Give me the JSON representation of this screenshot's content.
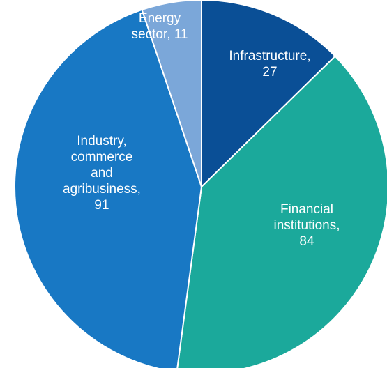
{
  "chart_data": {
    "type": "pie",
    "start": "top",
    "direction": "clockwise",
    "slices": [
      {
        "category": "Infrastructure",
        "value": 27,
        "color": "#0a4f96",
        "label_lines": [
          "Infrastructure,",
          "27"
        ]
      },
      {
        "category": "Financial institutions",
        "value": 84,
        "color": "#1ba99b",
        "label_lines": [
          "Financial",
          "institutions,",
          "84"
        ]
      },
      {
        "category": "Industry, commerce and agribusiness",
        "value": 91,
        "color": "#1878c4",
        "label_lines": [
          "Industry,",
          "commerce",
          "and",
          "agribusiness,",
          "91"
        ]
      },
      {
        "category": "Energy sector",
        "value": 11,
        "color": "#7ba7d9",
        "label_lines": [
          "Energy",
          "sector, 11"
        ]
      }
    ],
    "legend": "none",
    "data_labels": "inside"
  }
}
